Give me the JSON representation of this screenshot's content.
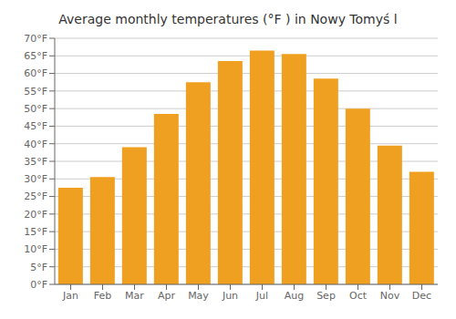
{
  "chart_data": {
    "type": "bar",
    "title": "Average monthly temperatures (°F ) in Nowy Tomyś l",
    "categories": [
      "Jan",
      "Feb",
      "Mar",
      "Apr",
      "May",
      "Jun",
      "Jul",
      "Aug",
      "Sep",
      "Oct",
      "Nov",
      "Dec"
    ],
    "values": [
      27.5,
      30.5,
      39.0,
      48.5,
      57.5,
      63.5,
      66.5,
      65.5,
      58.5,
      50.0,
      39.5,
      32.0
    ],
    "color": "#F0A020",
    "ylim": [
      0,
      70
    ],
    "yticks": [
      {
        "value": 0,
        "label": "0°F"
      },
      {
        "value": 5,
        "label": "5°F"
      },
      {
        "value": 10,
        "label": "10°F"
      },
      {
        "value": 15,
        "label": "15°F"
      },
      {
        "value": 20,
        "label": "20°F"
      },
      {
        "value": 25,
        "label": "25°F"
      },
      {
        "value": 30,
        "label": "30°F"
      },
      {
        "value": 35,
        "label": "35°F"
      },
      {
        "value": 40,
        "label": "40°F"
      },
      {
        "value": 45,
        "label": "45°F"
      },
      {
        "value": 50,
        "label": "50°F"
      },
      {
        "value": 55,
        "label": "55°F"
      },
      {
        "value": 60,
        "label": "60°F"
      },
      {
        "value": 65,
        "label": "65°F"
      },
      {
        "value": 70,
        "label": "70°F"
      }
    ],
    "grid": true
  }
}
